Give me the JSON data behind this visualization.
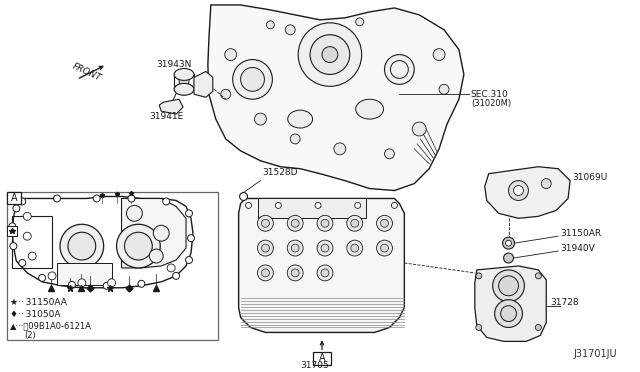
{
  "figsize": [
    6.4,
    3.72
  ],
  "dpi": 100,
  "bg": "#ffffff",
  "lc": "#1a1a1a",
  "diagram_code": "J31701JU",
  "labels": {
    "front": "FRONT",
    "p31943N": "31943N",
    "p31941E": "31941E",
    "sec310_a": "SEC.310",
    "sec310_b": "(31020M)",
    "p31528D": "31528D",
    "p31705": "31705",
    "p31069U": "31069U",
    "p31150AR": "31150AR",
    "p31940V": "31940V",
    "p31728": "31728",
    "leg1": "★·· 31150AA",
    "leg2": "♦·· 31050A",
    "leg3": "▲···Ⓑ09B1A0-6121A",
    "leg3b": "(2)",
    "sA": "A"
  }
}
